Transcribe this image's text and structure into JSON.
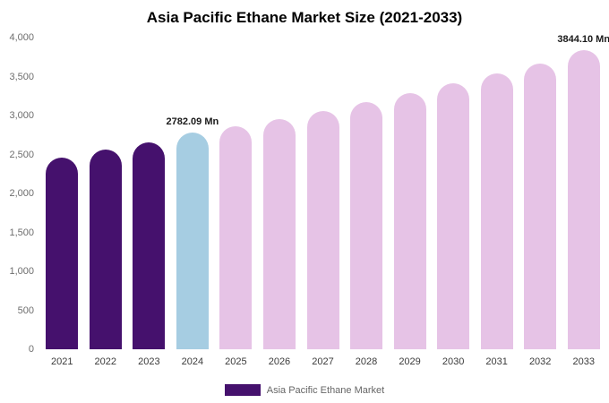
{
  "legend": {
    "label": "Asia Pacific Ethane Market",
    "swatch_color": "#45116d"
  },
  "chart_data": {
    "type": "bar",
    "title": "Asia Pacific Ethane Market Size (2021-2033)",
    "categories": [
      "2021",
      "2022",
      "2023",
      "2024",
      "2025",
      "2026",
      "2027",
      "2028",
      "2029",
      "2030",
      "2031",
      "2032",
      "2033"
    ],
    "values": [
      2460,
      2560,
      2660,
      2782.09,
      2865,
      2955,
      3060,
      3175,
      3290,
      3415,
      3540,
      3665,
      3844.1
    ],
    "bar_colors": [
      "#45116d",
      "#45116d",
      "#45116d",
      "#a6cde2",
      "#e6c3e6",
      "#e6c3e6",
      "#e6c3e6",
      "#e6c3e6",
      "#e6c3e6",
      "#e6c3e6",
      "#e6c3e6",
      "#e6c3e6",
      "#e6c3e6"
    ],
    "data_labels": [
      null,
      null,
      null,
      "2782.09 Mn",
      null,
      null,
      null,
      null,
      null,
      null,
      null,
      null,
      "3844.10 Mn"
    ],
    "xlabel": "",
    "ylabel": "",
    "ylim": [
      0,
      4000
    ],
    "ytick_labels": [
      "0",
      "500",
      "1,000",
      "1,500",
      "2,000",
      "2,500",
      "3,000",
      "3,500",
      "4,000"
    ],
    "grid": false,
    "legend_position": "bottom",
    "series_colors": {
      "historical": "#45116d",
      "current_year": "#a6cde2",
      "forecast": "#e6c3e6"
    }
  }
}
